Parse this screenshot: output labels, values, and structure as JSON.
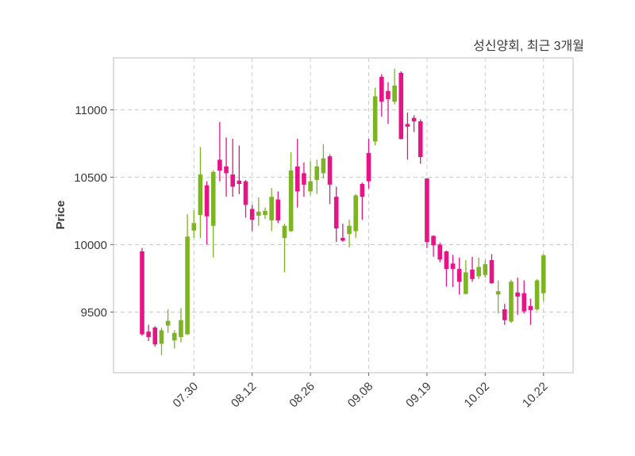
{
  "header": {
    "title": "성신양회, 최근 3개월"
  },
  "chart_data": {
    "type": "candlestick",
    "title": "성신양회, 최근 3개월",
    "ylabel": "Price",
    "xlabel": "",
    "y_ticks": [
      9500,
      10000,
      10500,
      11000
    ],
    "ylim": [
      9050,
      11385
    ],
    "grid": "dashed-both-axes",
    "legend_position": "none",
    "up_color": "#7db423",
    "down_color": "#e61487",
    "axis_text_color": "#3a3a3a",
    "grid_color": "#cccccc",
    "frame_color": "#d4d4d4",
    "x_tick_labels": [
      "07.30",
      "08.12",
      "08.26",
      "09.08",
      "09.19",
      "10.02",
      "10.22"
    ],
    "x_tick_indices": [
      8,
      17,
      26,
      35,
      44,
      53,
      62
    ],
    "candles_ohlc": [
      [
        9950,
        9975,
        9325,
        9335
      ],
      [
        9355,
        9405,
        9285,
        9315
      ],
      [
        9385,
        9395,
        9245,
        9260
      ],
      [
        9265,
        9385,
        9180,
        9365
      ],
      [
        9400,
        9520,
        9345,
        9435
      ],
      [
        9290,
        9365,
        9230,
        9345
      ],
      [
        9315,
        9530,
        9275,
        9440
      ],
      [
        9335,
        10225,
        9330,
        10060
      ],
      [
        10105,
        10255,
        10050,
        10160
      ],
      [
        10220,
        10725,
        10050,
        10520
      ],
      [
        10440,
        10470,
        10000,
        10210
      ],
      [
        10140,
        10550,
        9905,
        10540
      ],
      [
        10630,
        10910,
        10470,
        10550
      ],
      [
        10580,
        10795,
        10355,
        10530
      ],
      [
        10520,
        10785,
        10355,
        10430
      ],
      [
        10475,
        10735,
        10375,
        10450
      ],
      [
        10470,
        10480,
        10200,
        10295
      ],
      [
        10265,
        10295,
        10100,
        10185
      ],
      [
        10215,
        10350,
        10140,
        10245
      ],
      [
        10220,
        10275,
        10190,
        10250
      ],
      [
        10180,
        10420,
        10100,
        10355
      ],
      [
        10335,
        10395,
        10160,
        10180
      ],
      [
        10050,
        10155,
        9795,
        10140
      ],
      [
        10100,
        10685,
        10095,
        10550
      ],
      [
        10580,
        10785,
        10275,
        10395
      ],
      [
        10530,
        10610,
        10355,
        10445
      ],
      [
        10395,
        10620,
        10365,
        10470
      ],
      [
        10480,
        10630,
        10375,
        10580
      ],
      [
        10530,
        10745,
        10490,
        10640
      ],
      [
        10655,
        10670,
        10300,
        10445
      ],
      [
        10355,
        10430,
        10020,
        10120
      ],
      [
        10050,
        10155,
        10020,
        10030
      ],
      [
        10080,
        10185,
        9980,
        10140
      ],
      [
        10100,
        10375,
        10050,
        10365
      ],
      [
        10450,
        10460,
        10185,
        10355
      ],
      [
        10680,
        10785,
        10415,
        10470
      ],
      [
        10765,
        11165,
        10735,
        11100
      ],
      [
        11245,
        11265,
        10950,
        11060
      ],
      [
        11140,
        11205,
        10895,
        11080
      ],
      [
        11060,
        11305,
        11040,
        11180
      ],
      [
        11275,
        11285,
        10780,
        10785
      ],
      [
        10895,
        10980,
        10630,
        10875
      ],
      [
        10940,
        10960,
        10835,
        10915
      ],
      [
        10915,
        10930,
        10600,
        10650
      ],
      [
        10490,
        10495,
        9975,
        10020
      ],
      [
        10065,
        10070,
        9910,
        9995
      ],
      [
        10000,
        10015,
        9870,
        9890
      ],
      [
        9950,
        9955,
        9690,
        9820
      ],
      [
        9860,
        9925,
        9685,
        9820
      ],
      [
        9820,
        9905,
        9630,
        9725
      ],
      [
        9635,
        9885,
        9630,
        9795
      ],
      [
        9815,
        9910,
        9725,
        9745
      ],
      [
        9765,
        9905,
        9745,
        9835
      ],
      [
        9775,
        9885,
        9755,
        9855
      ],
      [
        9885,
        9930,
        9710,
        9715
      ],
      [
        9630,
        9735,
        9490,
        9655
      ],
      [
        9520,
        9560,
        9405,
        9440
      ],
      [
        9430,
        9740,
        9420,
        9725
      ],
      [
        9645,
        9755,
        9480,
        9615
      ],
      [
        9640,
        9735,
        9490,
        9505
      ],
      [
        9545,
        9600,
        9405,
        9515
      ],
      [
        9520,
        9745,
        9510,
        9735
      ],
      [
        9640,
        9930,
        9580,
        9920
      ]
    ]
  }
}
